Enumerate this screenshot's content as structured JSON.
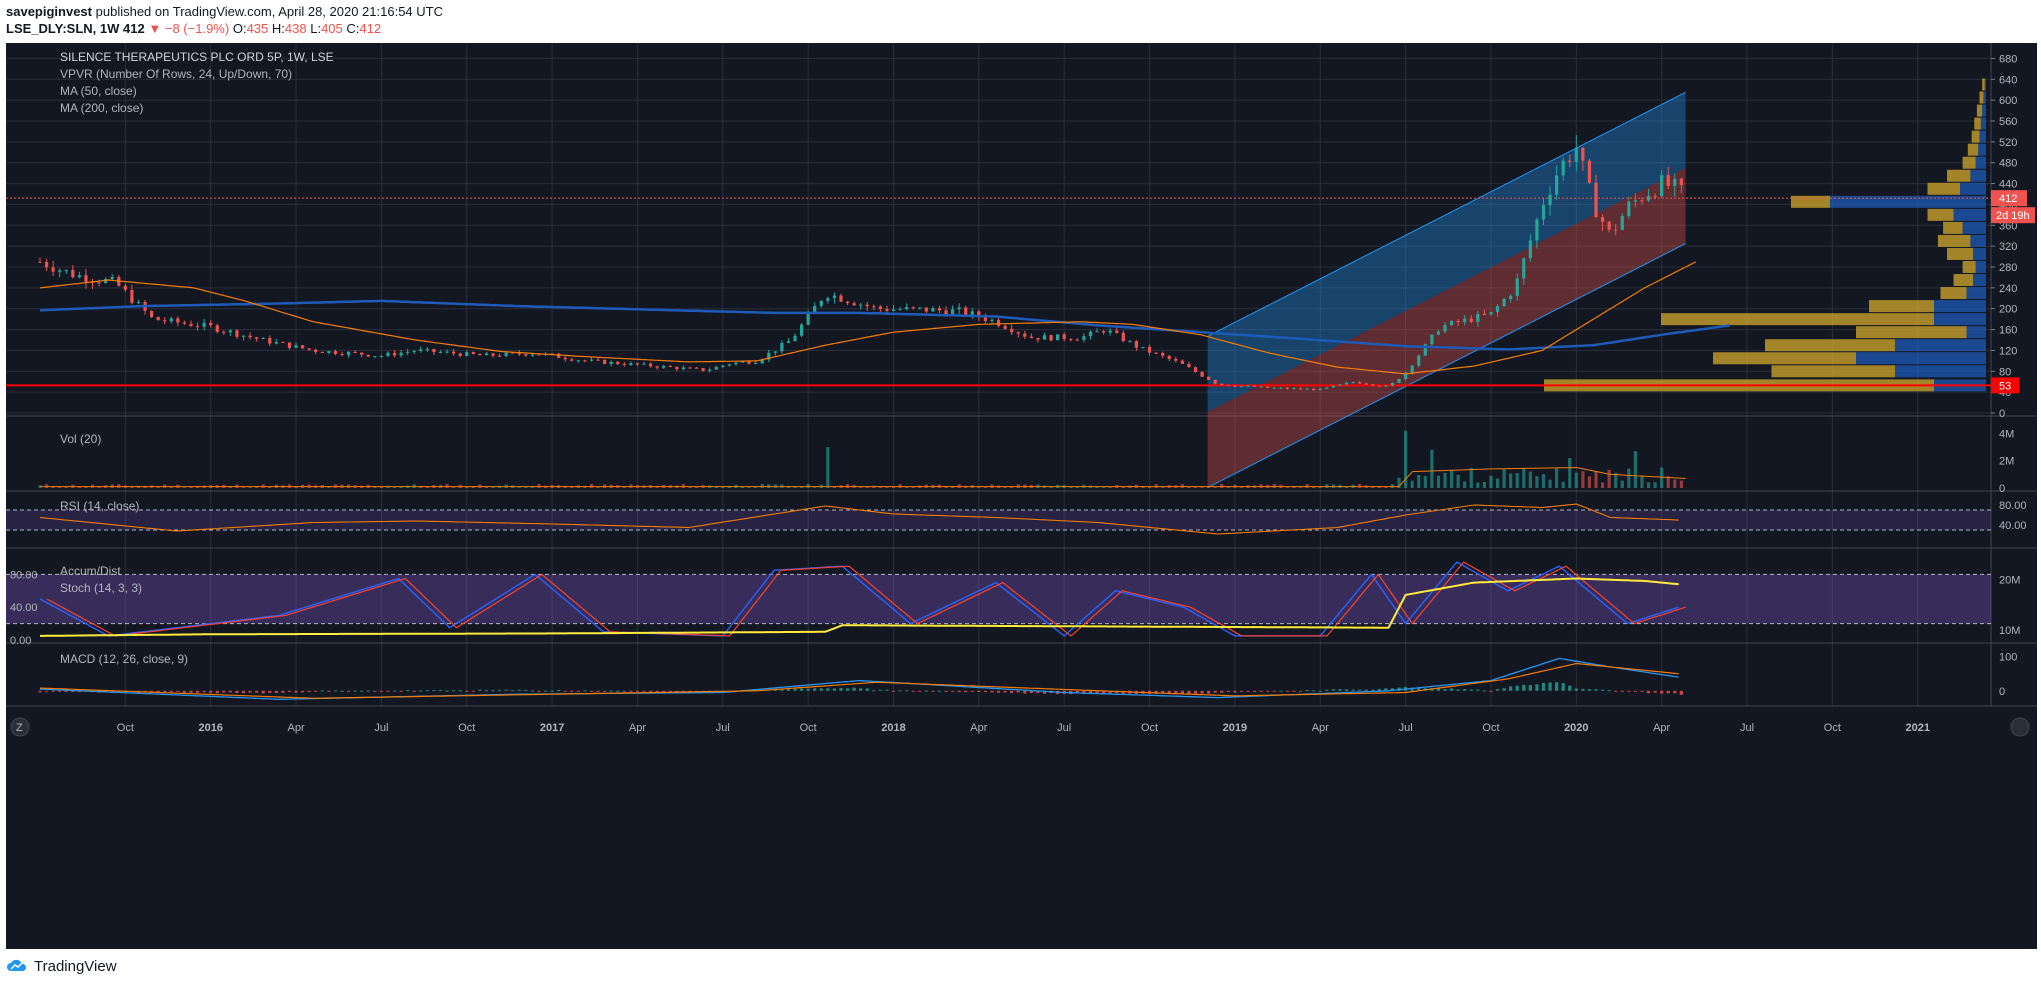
{
  "header": {
    "publisher": "savepiginvest",
    "published_text": "published on TradingView.com, April 28, 2020 21:16:54 UTC",
    "symbol": "LSE_DLY:SLN, 1W",
    "last": "412",
    "change_arrow": "▼",
    "change": "−8 (−1.9%)",
    "o_label": "O:",
    "o": "435",
    "h_label": "H:",
    "h": "438",
    "l_label": "L:",
    "l": "405",
    "c_label": "C:",
    "c": "412"
  },
  "colors": {
    "up": "#26a69a",
    "down": "#ef5350",
    "background": "#131722",
    "ma50": "#f57c00",
    "ma200": "#1e5bb8",
    "accum": "#ffeb3b"
  },
  "chart_data": [
    {
      "type": "candlestick",
      "title": "SILENCE THERAPEUTICS PLC ORD 5P, 1W, LSE",
      "legend": [
        "VPVR (Number Of Rows, 24, Up/Down, 70)",
        "MA (50, close)",
        "MA (200, close)"
      ],
      "ylim": [
        0,
        700
      ],
      "yticks": [
        0,
        40,
        80,
        120,
        160,
        200,
        240,
        280,
        320,
        360,
        400,
        440,
        480,
        520,
        560,
        600,
        640,
        680
      ],
      "last_price_label": "412",
      "countdown_label": "2d 19h",
      "horizontal_line_value": 53,
      "horizontal_line_label": "53",
      "x_ticks": [
        "Oct",
        "2016",
        "Apr",
        "Jul",
        "Oct",
        "2017",
        "Apr",
        "Jul",
        "Oct",
        "2018",
        "Apr",
        "Jul",
        "Oct",
        "2019",
        "Apr",
        "Jul",
        "Oct",
        "2020",
        "Apr",
        "Jul",
        "Oct",
        "2021"
      ],
      "close_anchors": [
        [
          2015.5,
          290
        ],
        [
          2015.6,
          265
        ],
        [
          2015.72,
          250
        ],
        [
          2015.83,
          180
        ],
        [
          2016.0,
          165
        ],
        [
          2016.15,
          140
        ],
        [
          2016.3,
          120
        ],
        [
          2016.5,
          110
        ],
        [
          2016.6,
          120
        ],
        [
          2016.8,
          110
        ],
        [
          2016.95,
          115
        ],
        [
          2017.1,
          100
        ],
        [
          2017.3,
          90
        ],
        [
          2017.45,
          82
        ],
        [
          2017.52,
          95
        ],
        [
          2017.6,
          100
        ],
        [
          2017.7,
          140
        ],
        [
          2017.8,
          230
        ],
        [
          2017.85,
          220
        ],
        [
          2017.95,
          200
        ],
        [
          2018.1,
          198
        ],
        [
          2018.2,
          195
        ],
        [
          2018.3,
          175
        ],
        [
          2018.4,
          145
        ],
        [
          2018.55,
          145
        ],
        [
          2018.62,
          160
        ],
        [
          2018.72,
          125
        ],
        [
          2018.84,
          95
        ],
        [
          2018.95,
          55
        ],
        [
          2019.1,
          48
        ],
        [
          2019.25,
          45
        ],
        [
          2019.35,
          60
        ],
        [
          2019.45,
          50
        ],
        [
          2019.5,
          78
        ],
        [
          2019.6,
          165
        ],
        [
          2019.75,
          190
        ],
        [
          2019.82,
          240
        ],
        [
          2019.9,
          400
        ],
        [
          2019.95,
          470
        ],
        [
          2020.0,
          510
        ],
        [
          2020.05,
          400
        ],
        [
          2020.1,
          340
        ],
        [
          2020.15,
          395
        ],
        [
          2020.2,
          420
        ],
        [
          2020.25,
          440
        ],
        [
          2020.3,
          430
        ],
        [
          2020.32,
          412
        ]
      ],
      "ma50_anchors": [
        [
          2015.5,
          240
        ],
        [
          2015.7,
          255
        ],
        [
          2015.95,
          240
        ],
        [
          2016.1,
          215
        ],
        [
          2016.3,
          175
        ],
        [
          2016.6,
          140
        ],
        [
          2016.85,
          118
        ],
        [
          2017.1,
          108
        ],
        [
          2017.4,
          98
        ],
        [
          2017.6,
          100
        ],
        [
          2017.8,
          130
        ],
        [
          2018.0,
          155
        ],
        [
          2018.25,
          170
        ],
        [
          2018.55,
          175
        ],
        [
          2018.7,
          170
        ],
        [
          2018.9,
          150
        ],
        [
          2019.1,
          115
        ],
        [
          2019.3,
          88
        ],
        [
          2019.5,
          75
        ],
        [
          2019.7,
          90
        ],
        [
          2019.9,
          120
        ],
        [
          2020.05,
          180
        ],
        [
          2020.2,
          240
        ],
        [
          2020.35,
          290
        ]
      ],
      "ma200_anchors": [
        [
          2015.5,
          197
        ],
        [
          2015.8,
          205
        ],
        [
          2016.2,
          210
        ],
        [
          2016.5,
          215
        ],
        [
          2016.9,
          205
        ],
        [
          2017.3,
          198
        ],
        [
          2017.65,
          192
        ],
        [
          2017.9,
          192
        ],
        [
          2018.3,
          185
        ],
        [
          2018.6,
          168
        ],
        [
          2018.9,
          155
        ],
        [
          2019.2,
          142
        ],
        [
          2019.5,
          128
        ],
        [
          2019.8,
          122
        ],
        [
          2020.05,
          130
        ],
        [
          2020.25,
          150
        ],
        [
          2020.45,
          168
        ]
      ],
      "regression_channel": {
        "start": 2018.92,
        "end": 2020.32,
        "mid_start": 2,
        "mid_end": 470,
        "half_width": 145
      },
      "volume_profile": [
        {
          "price": 53,
          "up": 300,
          "down": 40
        },
        {
          "price": 80,
          "up": 95,
          "down": 70
        },
        {
          "price": 105,
          "up": 110,
          "down": 100
        },
        {
          "price": 130,
          "up": 100,
          "down": 70
        },
        {
          "price": 155,
          "up": 85,
          "down": 15
        },
        {
          "price": 180,
          "up": 210,
          "down": 40
        },
        {
          "price": 205,
          "up": 50,
          "down": 40
        },
        {
          "price": 230,
          "up": 20,
          "down": 15
        },
        {
          "price": 255,
          "up": 15,
          "down": 10
        },
        {
          "price": 280,
          "up": 10,
          "down": 8
        },
        {
          "price": 305,
          "up": 20,
          "down": 10
        },
        {
          "price": 330,
          "up": 25,
          "down": 12
        },
        {
          "price": 355,
          "up": 15,
          "down": 18
        },
        {
          "price": 380,
          "up": 20,
          "down": 25
        },
        {
          "price": 405,
          "up": 30,
          "down": 120
        },
        {
          "price": 430,
          "up": 25,
          "down": 20
        },
        {
          "price": 455,
          "up": 18,
          "down": 12
        },
        {
          "price": 480,
          "up": 10,
          "down": 8
        },
        {
          "price": 505,
          "up": 8,
          "down": 6
        },
        {
          "price": 530,
          "up": 6,
          "down": 5
        },
        {
          "price": 555,
          "up": 5,
          "down": 4
        },
        {
          "price": 580,
          "up": 4,
          "down": 3
        },
        {
          "price": 605,
          "up": 3,
          "down": 2
        },
        {
          "price": 630,
          "up": 2,
          "down": 1
        }
      ]
    },
    {
      "type": "bar",
      "title": "Vol (20)",
      "yticks": [
        "0",
        "2M",
        "4M"
      ],
      "spikes": [
        [
          2017.8,
          3.0
        ],
        [
          2019.5,
          4.2
        ],
        [
          2019.58,
          2.8
        ],
        [
          2019.98,
          2.2
        ],
        [
          2020.18,
          2.7
        ],
        [
          2020.25,
          1.5
        ]
      ]
    },
    {
      "type": "line",
      "title": "RSI (14, close)",
      "ylim": [
        0,
        100
      ],
      "yticks": [
        "80.00",
        "40.00"
      ],
      "bands": [
        70,
        30
      ],
      "anchors": [
        [
          2015.5,
          55
        ],
        [
          2015.9,
          28
        ],
        [
          2016.3,
          45
        ],
        [
          2016.6,
          48
        ],
        [
          2017.0,
          42
        ],
        [
          2017.4,
          35
        ],
        [
          2017.8,
          78
        ],
        [
          2018.0,
          62
        ],
        [
          2018.3,
          55
        ],
        [
          2018.6,
          45
        ],
        [
          2018.95,
          22
        ],
        [
          2019.3,
          35
        ],
        [
          2019.5,
          60
        ],
        [
          2019.7,
          80
        ],
        [
          2019.9,
          75
        ],
        [
          2020.0,
          82
        ],
        [
          2020.1,
          55
        ],
        [
          2020.3,
          50
        ]
      ]
    },
    {
      "type": "line",
      "title": "Accum/Dist",
      "subtitle": "Stoch (14, 3, 3)",
      "yticks_left": [
        "80.00",
        "40.00",
        "0.00"
      ],
      "yticks_right": [
        "20M",
        "10M"
      ],
      "accum_anchors": [
        [
          2015.5,
          5
        ],
        [
          2016.0,
          7
        ],
        [
          2017.0,
          8
        ],
        [
          2017.8,
          10
        ],
        [
          2017.85,
          18
        ],
        [
          2018.9,
          16
        ],
        [
          2019.45,
          15
        ],
        [
          2019.5,
          55
        ],
        [
          2019.7,
          70
        ],
        [
          2020.0,
          75
        ],
        [
          2020.2,
          72
        ],
        [
          2020.3,
          68
        ]
      ],
      "stoch_anchors": [
        [
          2015.5,
          50
        ],
        [
          2015.7,
          5
        ],
        [
          2016.2,
          30
        ],
        [
          2016.55,
          75
        ],
        [
          2016.7,
          15
        ],
        [
          2016.95,
          80
        ],
        [
          2017.15,
          10
        ],
        [
          2017.5,
          5
        ],
        [
          2017.65,
          85
        ],
        [
          2017.85,
          90
        ],
        [
          2018.05,
          20
        ],
        [
          2018.3,
          70
        ],
        [
          2018.5,
          5
        ],
        [
          2018.65,
          60
        ],
        [
          2018.85,
          40
        ],
        [
          2019.0,
          5
        ],
        [
          2019.25,
          5
        ],
        [
          2019.4,
          80
        ],
        [
          2019.5,
          20
        ],
        [
          2019.65,
          95
        ],
        [
          2019.8,
          60
        ],
        [
          2019.95,
          90
        ],
        [
          2020.15,
          20
        ],
        [
          2020.3,
          40
        ]
      ]
    },
    {
      "type": "line",
      "title": "MACD (12, 26, close, 9)",
      "yticks": [
        "100",
        "0"
      ],
      "macd_anchors": [
        [
          2015.5,
          5
        ],
        [
          2016.2,
          -25
        ],
        [
          2016.9,
          -10
        ],
        [
          2017.5,
          -5
        ],
        [
          2017.9,
          30
        ],
        [
          2018.5,
          -5
        ],
        [
          2018.95,
          -20
        ],
        [
          2019.45,
          0
        ],
        [
          2019.75,
          30
        ],
        [
          2019.95,
          95
        ],
        [
          2020.1,
          70
        ],
        [
          2020.3,
          40
        ]
      ],
      "signal_anchors": [
        [
          2015.5,
          8
        ],
        [
          2016.3,
          -22
        ],
        [
          2017.0,
          -10
        ],
        [
          2017.6,
          0
        ],
        [
          2017.95,
          25
        ],
        [
          2018.6,
          0
        ],
        [
          2019.0,
          -15
        ],
        [
          2019.5,
          -5
        ],
        [
          2019.8,
          35
        ],
        [
          2020.0,
          80
        ],
        [
          2020.3,
          50
        ]
      ]
    }
  ],
  "footer": {
    "brand": "TradingView"
  }
}
